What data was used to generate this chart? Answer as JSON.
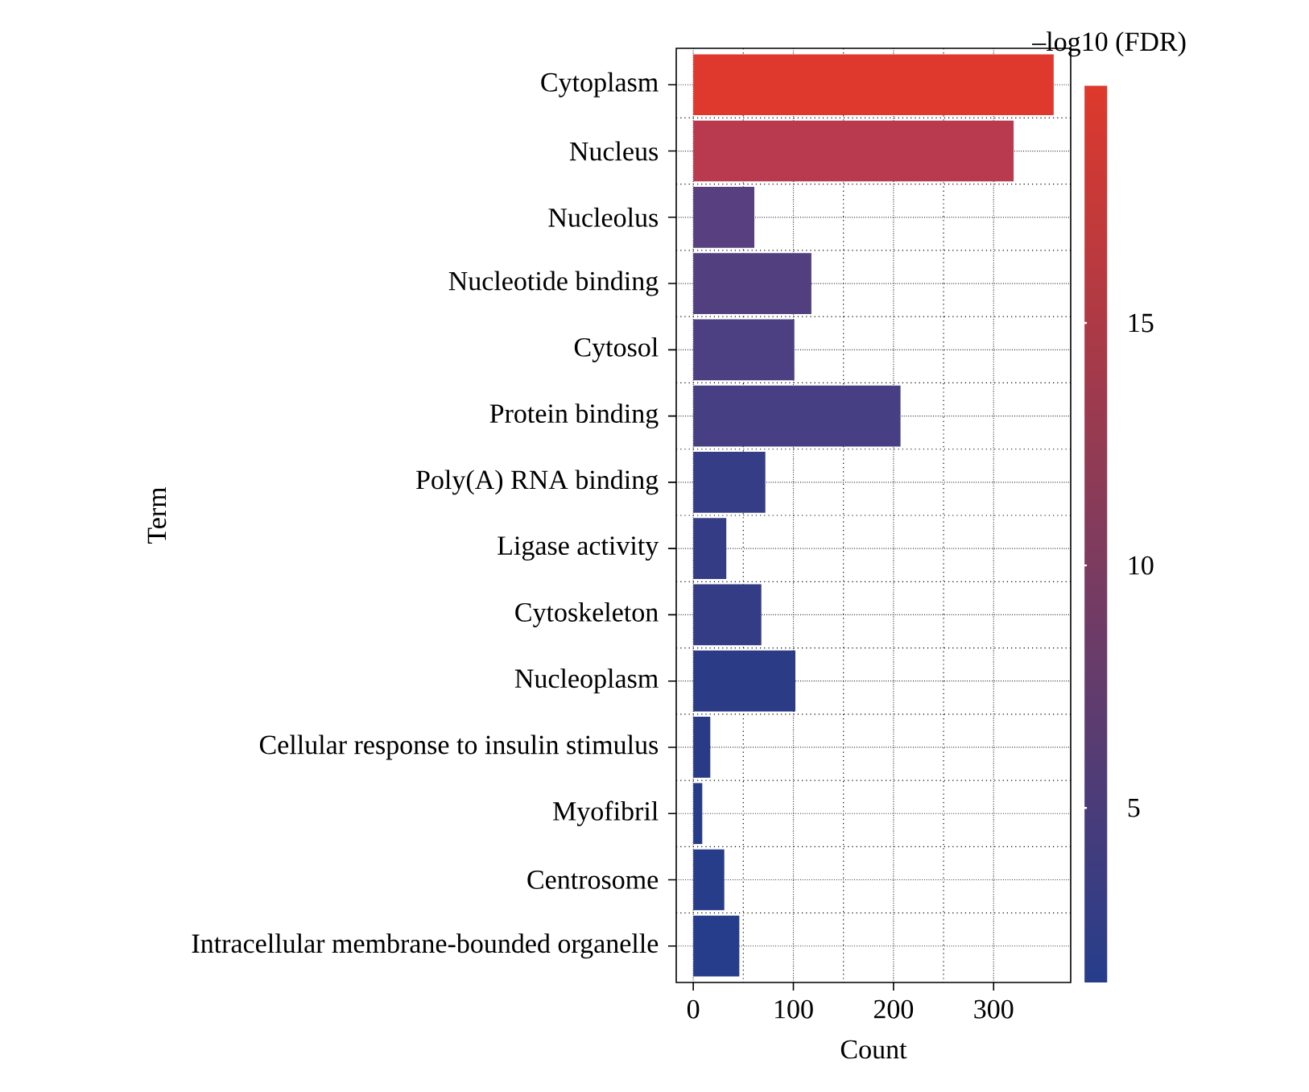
{
  "chart_data": {
    "type": "bar",
    "orientation": "horizontal",
    "xlabel": "Count",
    "ylabel": "Term",
    "clabel": "–log10 (FDR)",
    "categories": [
      "Cytoplasm",
      "Nucleus",
      "Nucleolus",
      "Nucleotide binding",
      "Cytosol",
      "Protein binding",
      "Poly(A) RNA binding",
      "Ligase activity",
      "Cytoskeleton",
      "Nucleoplasm",
      "Cellular response to insulin stimulus",
      "Myofibril",
      "Centrosome",
      "Intracellular membrane-bounded organelle"
    ],
    "values": [
      360,
      320,
      61,
      118,
      101,
      207,
      72,
      33,
      68,
      102,
      17,
      9,
      31,
      46
    ],
    "cvalues": [
      19.9,
      15.5,
      5.5,
      5.0,
      4.5,
      4.0,
      2.5,
      2.5,
      2.8,
      1.8,
      1.6,
      1.5,
      1.5,
      1.4
    ],
    "colors": [
      "#de392c",
      "#b93a4f",
      "#573f80",
      "#523f80",
      "#4c4083",
      "#473f83",
      "#343d85",
      "#353c86",
      "#343c86",
      "#2c3b86",
      "#2a3b86",
      "#273c89",
      "#283d8a",
      "#263d8c"
    ],
    "clim": [
      1.4,
      19.9
    ],
    "cticks": [
      5,
      10,
      15
    ],
    "xlim": [
      -17,
      377
    ],
    "xticks": [
      0,
      100,
      200,
      300
    ],
    "grid": true
  }
}
